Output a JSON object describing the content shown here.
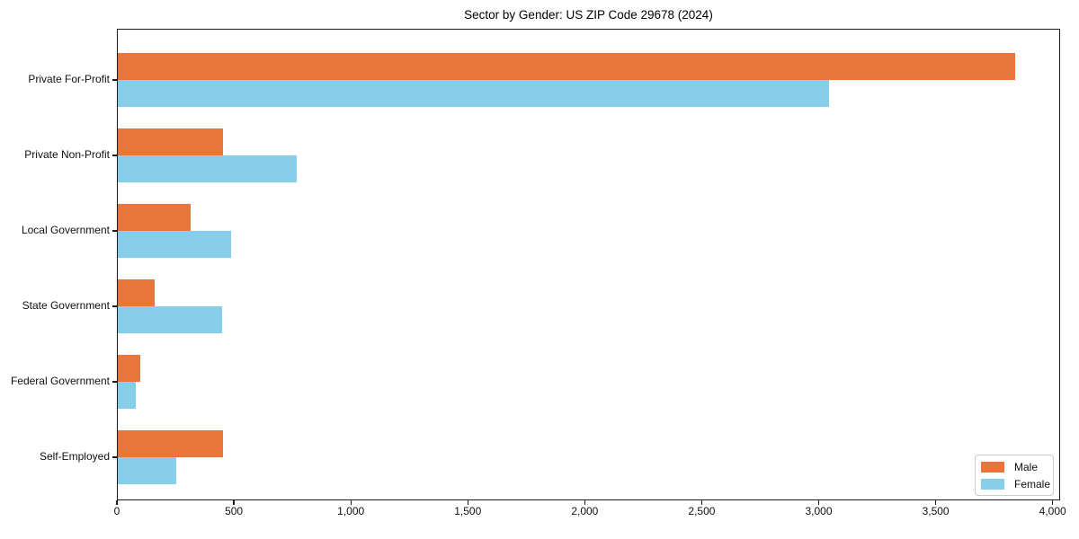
{
  "title": "Sector by Gender: US ZIP Code 29678 (2024)",
  "chart_data": {
    "type": "bar",
    "orientation": "horizontal",
    "title": "Sector by Gender: US ZIP Code 29678 (2024)",
    "xlabel": "",
    "ylabel": "",
    "categories": [
      "Private For-Profit",
      "Private Non-Profit",
      "Local Government",
      "State Government",
      "Federal Government",
      "Self-Employed"
    ],
    "series": [
      {
        "name": "Male",
        "color": "#e8763c",
        "values": [
          3840,
          455,
          315,
          160,
          100,
          455
        ]
      },
      {
        "name": "Female",
        "color": "#87ceeb",
        "values": [
          3045,
          770,
          490,
          450,
          80,
          255
        ]
      }
    ],
    "xlim": [
      0,
      4032
    ],
    "x_ticks": [
      0,
      500,
      1000,
      1500,
      2000,
      2500,
      3000,
      3500,
      4000
    ],
    "x_tick_labels": [
      "0",
      "500",
      "1,000",
      "1,500",
      "2,000",
      "2,500",
      "3,000",
      "3,500",
      "4,000"
    ],
    "grid": false,
    "legend_position": "lower right",
    "colors": {
      "spine": "#1c1c1c",
      "background": "#ffffff"
    }
  },
  "legend": {
    "items": [
      {
        "label": "Male",
        "color": "#e8763c"
      },
      {
        "label": "Female",
        "color": "#87ceeb"
      }
    ]
  }
}
